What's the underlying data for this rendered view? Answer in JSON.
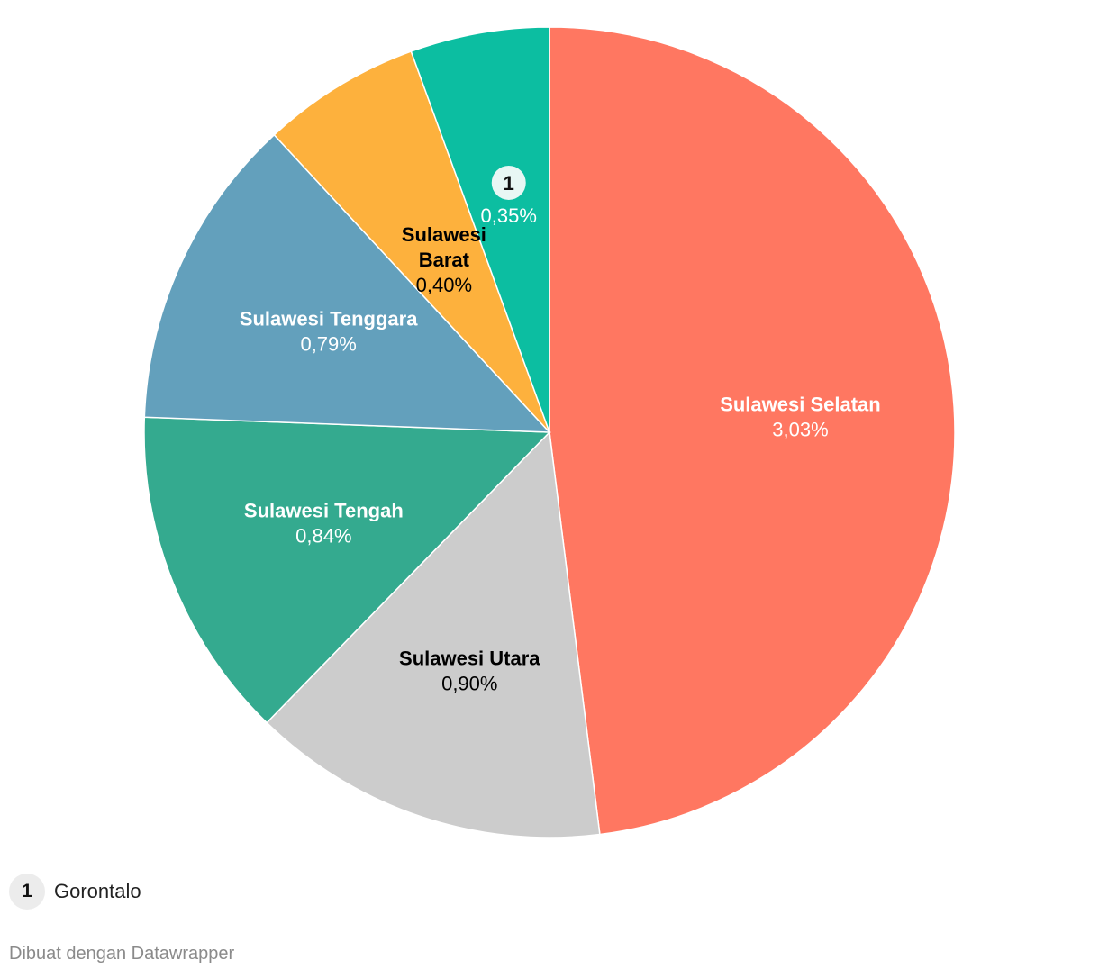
{
  "chart_data": {
    "type": "pie",
    "start_angle_deg": 0,
    "direction": "clockwise",
    "slices": [
      {
        "label": "Sulawesi Selatan",
        "value": 3.03,
        "value_label": "3,03%",
        "color": "#ff7761",
        "text_color": "#ffffff",
        "marker": ""
      },
      {
        "label": "Sulawesi Utara",
        "value": 0.9,
        "value_label": "0,90%",
        "color": "#cccccc",
        "text_color": "#000000",
        "marker": ""
      },
      {
        "label": "Sulawesi Tengah",
        "value": 0.84,
        "value_label": "0,84%",
        "color": "#34aa8f",
        "text_color": "#ffffff",
        "marker": ""
      },
      {
        "label": "Sulawesi Tenggara",
        "value": 0.79,
        "value_label": "0,79%",
        "color": "#63a0bc",
        "text_color": "#ffffff",
        "marker": ""
      },
      {
        "label": "Sulawesi Barat",
        "value": 0.4,
        "value_label": "0,40%",
        "color": "#fdb13d",
        "text_color": "#000000",
        "marker": ""
      },
      {
        "label": "Gorontalo",
        "value": 0.35,
        "value_label": "0,35%",
        "color": "#0cbea1",
        "text_color": "#ffffff",
        "marker": "1"
      }
    ]
  },
  "key": {
    "marker": "1",
    "label": "Gorontalo"
  },
  "footer": {
    "text": "Dibuat dengan Datawrapper"
  }
}
